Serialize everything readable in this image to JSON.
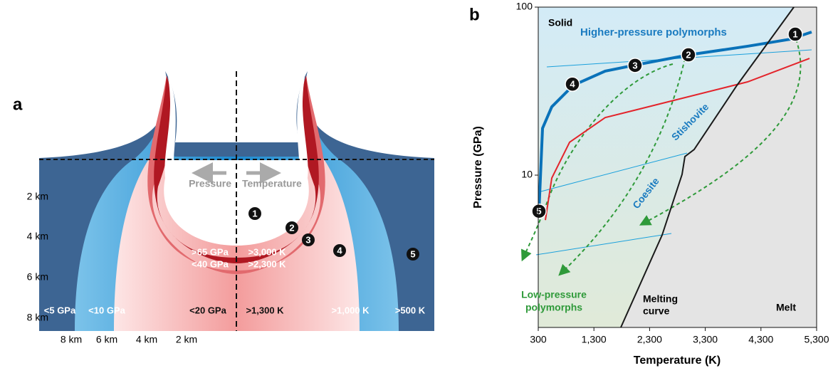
{
  "panel_a": {
    "label": "a",
    "depth_labels": [
      "2 km",
      "4 km",
      "6 km",
      "8 km"
    ],
    "width_labels": [
      "8 km",
      "6 km",
      "4 km",
      "2 km"
    ],
    "arrows": {
      "left": "Pressure",
      "right": "Temperature"
    },
    "zones": [
      "1",
      "2",
      "3",
      "4",
      "5"
    ],
    "zone_labels": [
      ">65 GPa",
      ">3,000 K",
      "<40 GPa",
      ">2,300 K",
      "<5 GPa",
      "<10 GPa",
      "<20 GPa",
      ">1,300 K",
      ">1,000 K",
      ">500 K"
    ]
  },
  "chart_data": {
    "type": "line",
    "panel_label": "b",
    "xlabel": "Temperature (K)",
    "ylabel": "Pressure (GPa)",
    "yscale": "log",
    "xlim": [
      300,
      5300
    ],
    "ylim": [
      1.24,
      100
    ],
    "xticks": [
      300,
      {
        "value": 1300,
        "label": "1,300"
      },
      {
        "value": 2300,
        "label": "2,300"
      },
      {
        "value": 3300,
        "label": "3,300"
      },
      {
        "value": 4300,
        "label": "4,300"
      },
      {
        "value": 5300,
        "label": "5,300"
      }
    ],
    "yticks": [
      10,
      100
    ],
    "series": [
      {
        "color": "#0a72b9",
        "x": [
          313,
          377,
          543,
          927,
          1502,
          2014,
          3011,
          4060,
          4827,
          5210
        ],
        "values": [
          6.1,
          19,
          25.5,
          34.2,
          41.6,
          45,
          52,
          58.5,
          64.4,
          71.1
        ]
      },
      {
        "color": "#e3242b",
        "x": [
          428,
          543,
          863,
          1502,
          2781,
          4060,
          5172
        ],
        "values": [
          5.4,
          9.6,
          15.7,
          22,
          28.1,
          35.9,
          49.5
        ]
      },
      {
        "color": "#1a1a1a",
        "x": [
          1783,
          2525,
          2883,
          2934,
          3100,
          3868,
          4891
        ],
        "values": [
          1.24,
          4.4,
          10.1,
          12.9,
          14.2,
          34.2,
          100
        ]
      }
    ],
    "points": {
      "labels": [
        "1",
        "2",
        "3",
        "4",
        "5"
      ],
      "x": [
        4916,
        2998,
        2039,
        914,
        313
      ],
      "values": [
        69,
        52,
        45,
        34.8,
        6.1
      ]
    },
    "annotations": [
      "Solid",
      "Higher-pressure polymorphs",
      "Stishovite",
      "Coesite",
      "Low-pressure",
      "polymorphs",
      "Melting",
      "curve",
      "Melt"
    ]
  }
}
